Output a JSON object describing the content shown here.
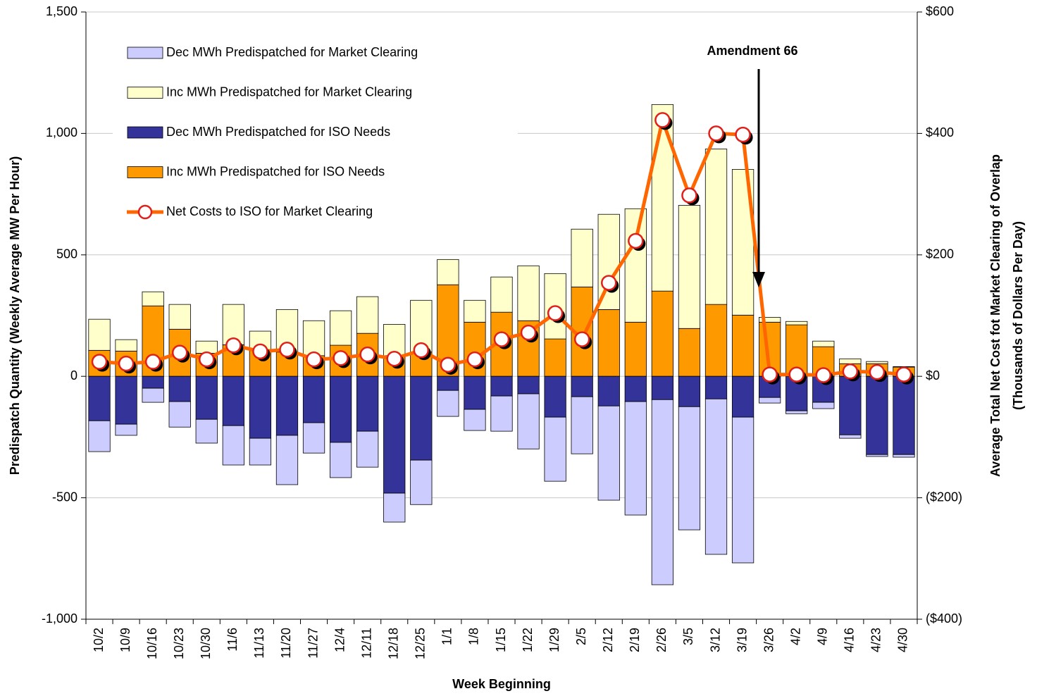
{
  "chart_data": {
    "type": "bar",
    "annotation": "Amendment 66",
    "xlabel": "Week Beginning",
    "ylabel": "Predispatch Quantity (Weekly Average MW Per Hour)",
    "y2label": [
      "Average Total Net Cost fot Market Clearing of Overlap",
      "(Thousands of Dollars Per Day)"
    ],
    "categories": [
      "10/2",
      "10/9",
      "10/16",
      "10/23",
      "10/30",
      "11/6",
      "11/13",
      "11/20",
      "11/27",
      "12/4",
      "12/11",
      "12/18",
      "12/25",
      "1/1",
      "1/8",
      "1/15",
      "1/22",
      "1/29",
      "2/5",
      "2/12",
      "2/19",
      "2/26",
      "3/5",
      "3/12",
      "3/19",
      "3/26",
      "4/2",
      "4/9",
      "4/16",
      "4/23",
      "4/30"
    ],
    "series": [
      {
        "name": "Dec MWh Predispatched for Market Clearing",
        "color": "#ccccff",
        "values": [
          -127,
          -46,
          -58,
          -105,
          -98,
          -162,
          -110,
          -203,
          -125,
          -145,
          -148,
          -119,
          -183,
          -107,
          -87,
          -145,
          -227,
          -264,
          -235,
          -388,
          -467,
          -762,
          -507,
          -640,
          -600,
          -23,
          -12,
          -26,
          -14,
          -8,
          -11
        ]
      },
      {
        "name": "Inc MWh Predispatched for Market Clearing",
        "color": "#ffffcc",
        "values": [
          128,
          47,
          58,
          102,
          50,
          166,
          76,
          175,
          144,
          142,
          151,
          129,
          213,
          104,
          90,
          145,
          226,
          269,
          238,
          392,
          467,
          768,
          507,
          640,
          600,
          20,
          14,
          23,
          20,
          9,
          2
        ]
      },
      {
        "name": "Dec MWh Predispatched for ISO Needs",
        "color": "#333399",
        "values": [
          -183,
          -197,
          -49,
          -104,
          -177,
          -203,
          -255,
          -243,
          -191,
          -272,
          -226,
          -481,
          -345,
          -58,
          -136,
          -81,
          -72,
          -168,
          -84,
          -122,
          -104,
          -96,
          -125,
          -93,
          -168,
          -87,
          -142,
          -107,
          -241,
          -322,
          -322
        ]
      },
      {
        "name": "Inc MWh Predispatched for ISO Needs",
        "color": "#ff9900",
        "values": [
          107,
          104,
          290,
          194,
          95,
          130,
          110,
          100,
          85,
          128,
          177,
          85,
          100,
          377,
          223,
          264,
          229,
          154,
          368,
          275,
          223,
          351,
          197,
          296,
          252,
          223,
          212,
          122,
          52,
          52,
          38
        ]
      },
      {
        "name": "Net Costs to ISO for Market Clearing",
        "color": "#ff6600",
        "type": "line",
        "axis": "y2",
        "values": [
          24,
          21,
          24,
          39,
          28,
          51,
          41,
          44,
          28,
          30,
          36,
          29,
          43,
          19,
          28,
          61,
          72,
          104,
          61,
          154,
          223,
          422,
          298,
          400,
          398,
          3,
          3,
          2,
          8,
          7,
          3
        ]
      }
    ],
    "ylim": [
      -1000,
      1500
    ],
    "yticks": [
      {
        "value": -1000,
        "label": "-1,000"
      },
      -500,
      0,
      500,
      {
        "value": 1000,
        "label": "1,000"
      },
      {
        "value": 1500,
        "label": "1,500"
      }
    ],
    "y2lim": [
      -400,
      600
    ],
    "y2ticks": [
      {
        "value": -400,
        "label": "($400)"
      },
      {
        "value": -200,
        "label": "($200)"
      },
      {
        "value": 0,
        "label": "$0"
      },
      {
        "value": 200,
        "label": "$200"
      },
      {
        "value": 400,
        "label": "$400"
      },
      {
        "value": 600,
        "label": "$600"
      }
    ],
    "grid": true
  }
}
